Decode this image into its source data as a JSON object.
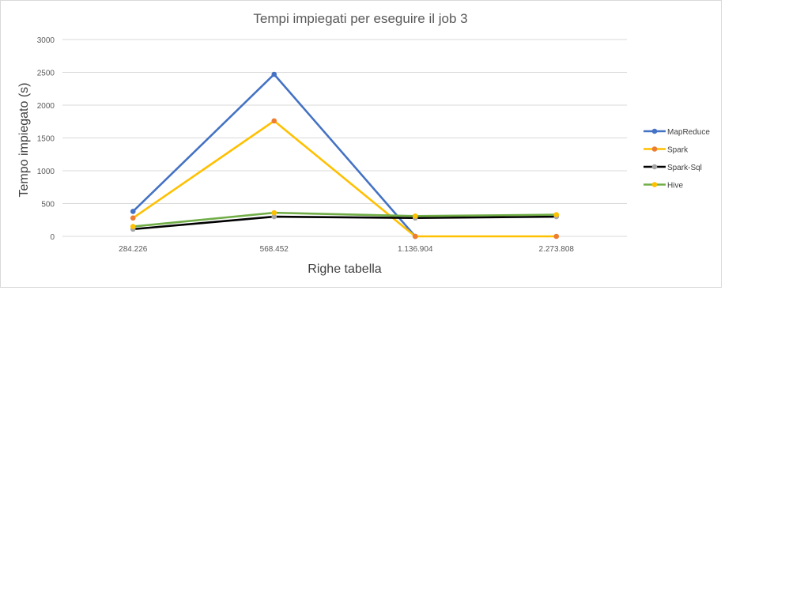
{
  "chart_data": {
    "type": "line",
    "title": "Tempi impiegati per eseguire il job 3",
    "xlabel": "Righe tabella",
    "ylabel": "Tempo impiegato (s)",
    "categories": [
      "284.226",
      "568.452",
      "1.136.904",
      "2.273.808"
    ],
    "ylim": [
      0,
      3000
    ],
    "yticks": [
      0,
      500,
      1000,
      1500,
      2000,
      2500,
      3000
    ],
    "grid": true,
    "legend_position": "right",
    "series": [
      {
        "name": "MapReduce",
        "line_color": "#4472c4",
        "marker_color": "#4472c4",
        "values": [
          380,
          2470,
          0,
          null
        ]
      },
      {
        "name": "Spark",
        "line_color": "#ffc000",
        "marker_color": "#ed7d31",
        "values": [
          280,
          1760,
          0,
          0
        ]
      },
      {
        "name": "Spark-Sql",
        "line_color": "#000000",
        "marker_color": "#a5a5a5",
        "values": [
          110,
          300,
          280,
          300
        ]
      },
      {
        "name": "Hive",
        "line_color": "#70ad47",
        "marker_color": "#ffc000",
        "values": [
          150,
          360,
          310,
          330
        ]
      }
    ]
  }
}
